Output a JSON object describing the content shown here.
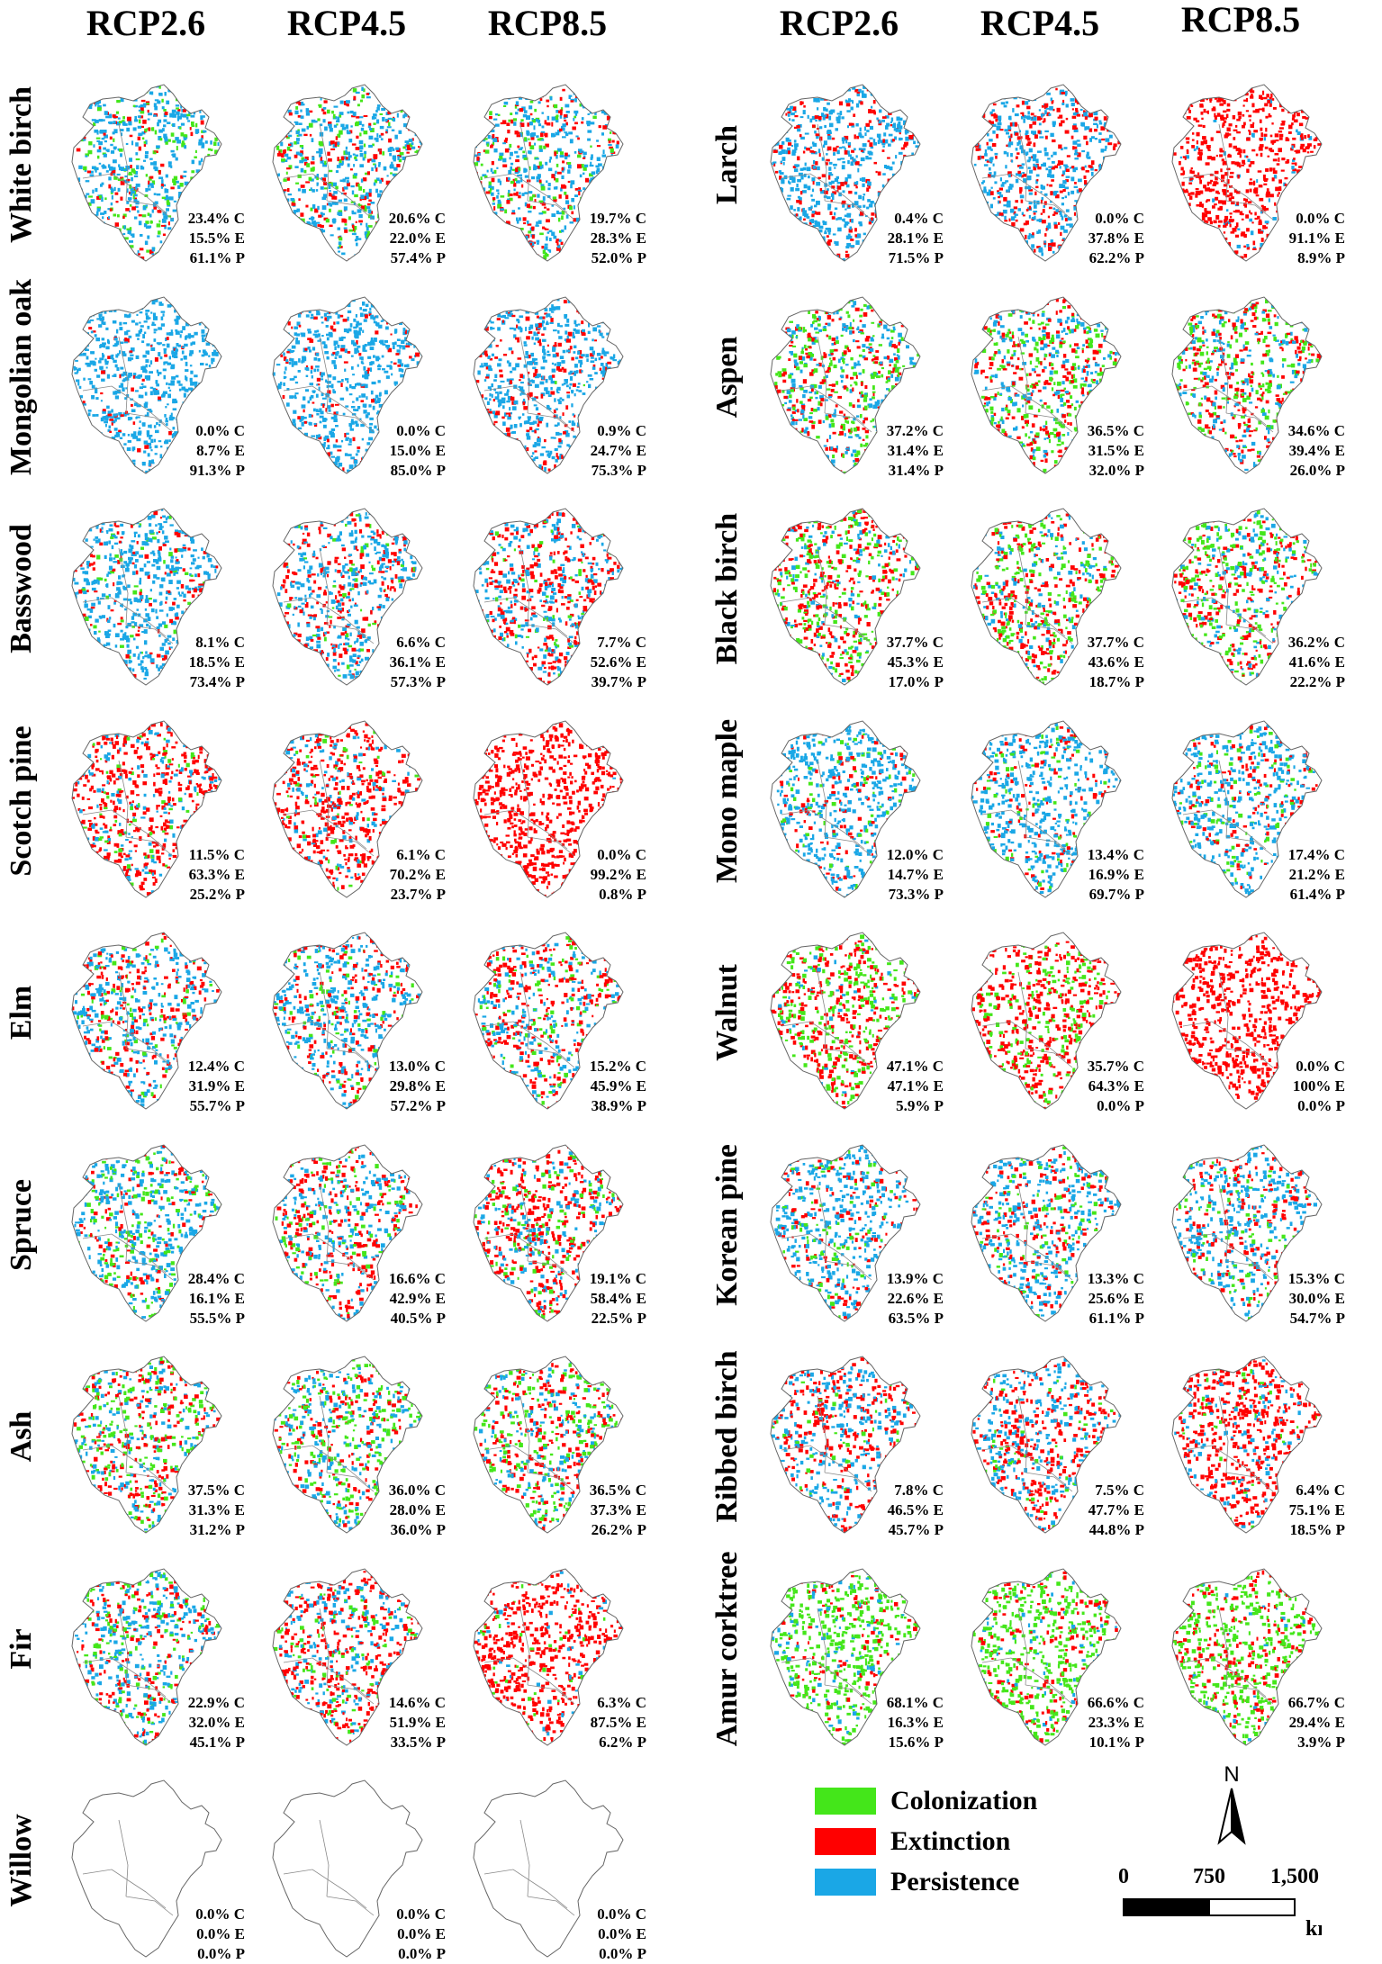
{
  "scenarios": [
    "RCP2.6",
    "RCP4.5",
    "RCP8.5"
  ],
  "legend": [
    {
      "label": "Colonization",
      "color": "#44e61a"
    },
    {
      "label": "Extinction",
      "color": "#ff0000"
    },
    {
      "label": "Persistence",
      "color": "#1aa7e6"
    }
  ],
  "north_label": "N",
  "scale": {
    "ticks": [
      "0",
      "750",
      "1,500"
    ],
    "unit": "km"
  },
  "species": [
    {
      "name": "White birch",
      "stats": [
        [
          "23.4% C",
          "15.5% E",
          "61.1% P"
        ],
        [
          "20.6% C",
          "22.0% E",
          "57.4% P"
        ],
        [
          "19.7% C",
          "28.3% E",
          "52.0% P"
        ]
      ]
    },
    {
      "name": "Mongolian oak",
      "stats": [
        [
          "0.0% C",
          "8.7% E",
          "91.3% P"
        ],
        [
          "0.0% C",
          "15.0% E",
          "85.0% P"
        ],
        [
          "0.9% C",
          "24.7% E",
          "75.3% P"
        ]
      ]
    },
    {
      "name": "Basswood",
      "stats": [
        [
          "8.1% C",
          "18.5% E",
          "73.4% P"
        ],
        [
          "6.6% C",
          "36.1% E",
          "57.3% P"
        ],
        [
          "7.7% C",
          "52.6% E",
          "39.7% P"
        ]
      ]
    },
    {
      "name": "Scotch pine",
      "stats": [
        [
          "11.5% C",
          "63.3% E",
          "25.2% P"
        ],
        [
          "6.1% C",
          "70.2% E",
          "23.7% P"
        ],
        [
          "0.0% C",
          "99.2% E",
          "0.8% P"
        ]
      ]
    },
    {
      "name": "Elm",
      "stats": [
        [
          "12.4% C",
          "31.9% E",
          "55.7% P"
        ],
        [
          "13.0% C",
          "29.8% E",
          "57.2% P"
        ],
        [
          "15.2% C",
          "45.9% E",
          "38.9% P"
        ]
      ]
    },
    {
      "name": "Spruce",
      "stats": [
        [
          "28.4% C",
          "16.1% E",
          "55.5% P"
        ],
        [
          "16.6% C",
          "42.9% E",
          "40.5% P"
        ],
        [
          "19.1% C",
          "58.4% E",
          "22.5% P"
        ]
      ]
    },
    {
      "name": "Ash",
      "stats": [
        [
          "37.5% C",
          "31.3% E",
          "31.2% P"
        ],
        [
          "36.0% C",
          "28.0% E",
          "36.0% P"
        ],
        [
          "36.5% C",
          "37.3% E",
          "26.2% P"
        ]
      ]
    },
    {
      "name": "Fir",
      "stats": [
        [
          "22.9% C",
          "32.0% E",
          "45.1% P"
        ],
        [
          "14.6% C",
          "51.9% E",
          "33.5% P"
        ],
        [
          "6.3% C",
          "87.5% E",
          "6.2% P"
        ]
      ]
    },
    {
      "name": "Willow",
      "stats": [
        [
          "0.0% C",
          "0.0% E",
          "0.0% P"
        ],
        [
          "0.0% C",
          "0.0% E",
          "0.0% P"
        ],
        [
          "0.0% C",
          "0.0% E",
          "0.0% P"
        ]
      ]
    },
    {
      "name": "Larch",
      "stats": [
        [
          "0.4% C",
          "28.1% E",
          "71.5% P"
        ],
        [
          "0.0% C",
          "37.8% E",
          "62.2% P"
        ],
        [
          "0.0% C",
          "91.1% E",
          "8.9% P"
        ]
      ]
    },
    {
      "name": "Aspen",
      "stats": [
        [
          "37.2% C",
          "31.4% E",
          "31.4% P"
        ],
        [
          "36.5% C",
          "31.5% E",
          "32.0% P"
        ],
        [
          "34.6% C",
          "39.4% E",
          "26.0% P"
        ]
      ]
    },
    {
      "name": "Black birch",
      "stats": [
        [
          "37.7% C",
          "45.3% E",
          "17.0% P"
        ],
        [
          "37.7% C",
          "43.6% E",
          "18.7% P"
        ],
        [
          "36.2% C",
          "41.6% E",
          "22.2% P"
        ]
      ]
    },
    {
      "name": "Mono maple",
      "stats": [
        [
          "12.0% C",
          "14.7% E",
          "73.3% P"
        ],
        [
          "13.4% C",
          "16.9% E",
          "69.7% P"
        ],
        [
          "17.4% C",
          "21.2% E",
          "61.4% P"
        ]
      ]
    },
    {
      "name": "Walnut",
      "stats": [
        [
          "47.1% C",
          "47.1% E",
          "5.9% P"
        ],
        [
          "35.7% C",
          "64.3% E",
          "0.0% P"
        ],
        [
          "0.0% C",
          "100% E",
          "0.0% P"
        ]
      ]
    },
    {
      "name": "Korean pine",
      "stats": [
        [
          "13.9% C",
          "22.6% E",
          "63.5% P"
        ],
        [
          "13.3% C",
          "25.6% E",
          "61.1% P"
        ],
        [
          "15.3% C",
          "30.0% E",
          "54.7% P"
        ]
      ]
    },
    {
      "name": "Ribbed birch",
      "stats": [
        [
          "7.8% C",
          "46.5% E",
          "45.7% P"
        ],
        [
          "7.5% C",
          "47.7% E",
          "44.8% P"
        ],
        [
          "6.4% C",
          "75.1% E",
          "18.5% P"
        ]
      ]
    },
    {
      "name": "Amur corktree",
      "stats": [
        [
          "68.1% C",
          "16.3% E",
          "15.6% P"
        ],
        [
          "66.6% C",
          "23.3% E",
          "10.1% P"
        ],
        [
          "66.7% C",
          "29.4% E",
          "3.9% P"
        ]
      ]
    }
  ]
}
